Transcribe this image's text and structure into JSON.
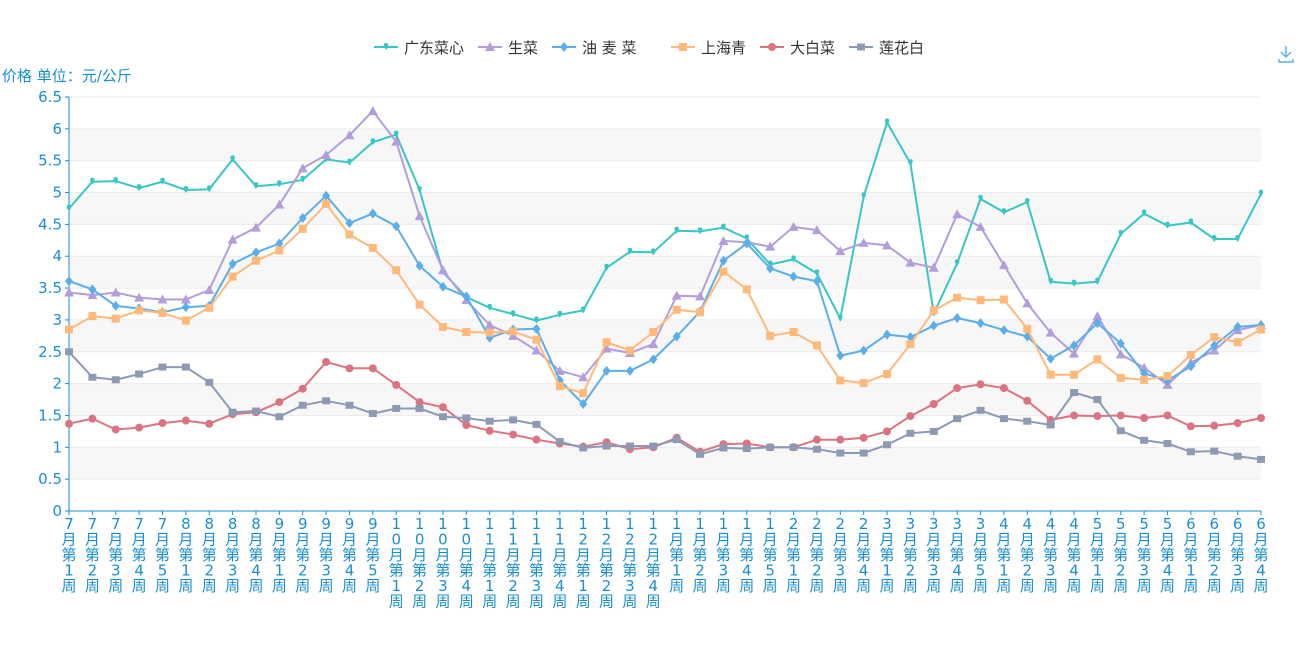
{
  "chart_data": {
    "type": "line",
    "title": "",
    "xlabel": "",
    "ylabel": "价格 单位：元/公斤",
    "ylim": [
      0,
      6.5
    ],
    "yticks": [
      0,
      0.5,
      1,
      1.5,
      2,
      2.5,
      3,
      3.5,
      4,
      4.5,
      5,
      5.5,
      6,
      6.5
    ],
    "ytick_labels": [
      "0",
      "0.5",
      "1",
      "1.5",
      "2",
      "2.5",
      "3",
      "3.5",
      "4",
      "4.5",
      "5",
      "5.5",
      "6",
      "6.5"
    ],
    "grid": "horizontal bands",
    "legend_position": "top-center",
    "categories": [
      "7月第1周",
      "7月第2周",
      "7月第3周",
      "7月第4周",
      "7月第5周",
      "8月第1周",
      "8月第2周",
      "8月第3周",
      "8月第4周",
      "9月第1周",
      "9月第2周",
      "9月第3周",
      "9月第4周",
      "9月第5周",
      "10月第1周",
      "10月第2周",
      "10月第3周",
      "10月第4周",
      "11月第1周",
      "11月第2周",
      "11月第3周",
      "11月第4周",
      "12月第1周",
      "12月第2周",
      "12月第3周",
      "12月第4周",
      "1月第1周",
      "1月第2周",
      "1月第3周",
      "1月第4周",
      "1月第5周",
      "2月第1周",
      "2月第2周",
      "2月第3周",
      "2月第4周",
      "3月第1周",
      "3月第2周",
      "3月第3周",
      "3月第4周",
      "3月第5周",
      "4月第1周",
      "4月第2周",
      "4月第3周",
      "4月第4周",
      "5月第1周",
      "5月第2周",
      "5月第3周",
      "5月第4周",
      "6月第1周",
      "6月第2周",
      "6月第3周",
      "6月第4周"
    ],
    "series": [
      {
        "name": "广东菜心",
        "color": "#38c6c6",
        "symbol": "pin",
        "values": [
          4.75,
          5.17,
          5.18,
          5.07,
          5.17,
          5.04,
          5.05,
          5.52,
          5.1,
          5.13,
          5.2,
          5.52,
          5.47,
          5.79,
          5.91,
          5.04,
          3.75,
          3.36,
          3.19,
          3.09,
          2.99,
          3.08,
          3.15,
          3.82,
          4.07,
          4.06,
          4.4,
          4.39,
          4.45,
          4.28,
          3.87,
          3.95,
          3.73,
          3.02,
          4.94,
          6.1,
          5.46,
          3.1,
          3.89,
          4.9,
          4.69,
          4.85,
          3.6,
          3.57,
          3.6,
          4.35,
          4.67,
          4.48,
          4.53,
          4.27,
          4.27,
          4.98
        ]
      },
      {
        "name": "生菜",
        "color": "#b39ddb",
        "symbol": "triangle",
        "values": [
          3.43,
          3.39,
          3.43,
          3.35,
          3.32,
          3.32,
          3.47,
          4.26,
          4.45,
          4.81,
          5.38,
          5.59,
          5.9,
          6.28,
          5.8,
          4.63,
          3.78,
          3.31,
          2.92,
          2.75,
          2.52,
          2.2,
          2.1,
          2.55,
          2.48,
          2.62,
          3.38,
          3.37,
          4.24,
          4.22,
          4.15,
          4.46,
          4.41,
          4.08,
          4.21,
          4.17,
          3.9,
          3.82,
          4.66,
          4.46,
          3.86,
          3.26,
          2.8,
          2.47,
          3.06,
          2.46,
          2.25,
          1.98,
          2.33,
          2.52,
          2.84,
          2.92
        ]
      },
      {
        "name": "油 麦 菜",
        "color": "#5aaeea",
        "symbol": "diamond",
        "values": [
          3.61,
          3.48,
          3.22,
          3.18,
          3.12,
          3.2,
          3.22,
          3.88,
          4.06,
          4.2,
          4.6,
          4.95,
          4.52,
          4.67,
          4.47,
          3.85,
          3.52,
          3.37,
          2.72,
          2.85,
          2.86,
          2.05,
          1.68,
          2.2,
          2.2,
          2.38,
          2.74,
          3.13,
          3.93,
          4.2,
          3.81,
          3.68,
          3.61,
          2.44,
          2.52,
          2.77,
          2.73,
          2.91,
          3.03,
          2.95,
          2.84,
          2.74,
          2.39,
          2.6,
          2.95,
          2.63,
          2.16,
          2.05,
          2.27,
          2.6,
          2.89,
          2.92
        ]
      },
      {
        "name": "上海青",
        "color": "#ffb97a",
        "symbol": "square",
        "values": [
          2.85,
          3.06,
          3.02,
          3.15,
          3.11,
          2.99,
          3.19,
          3.68,
          3.93,
          4.09,
          4.43,
          4.82,
          4.34,
          4.13,
          3.78,
          3.24,
          2.89,
          2.81,
          2.8,
          2.82,
          2.69,
          1.96,
          1.85,
          2.65,
          2.52,
          2.81,
          3.16,
          3.12,
          3.76,
          3.48,
          2.75,
          2.81,
          2.6,
          2.05,
          2.01,
          2.15,
          2.62,
          3.15,
          3.35,
          3.31,
          3.32,
          2.86,
          2.14,
          2.14,
          2.38,
          2.09,
          2.06,
          2.12,
          2.45,
          2.73,
          2.65,
          2.85
        ]
      },
      {
        "name": "大白菜",
        "color": "#dc7382",
        "symbol": "circle",
        "values": [
          1.37,
          1.45,
          1.28,
          1.31,
          1.38,
          1.42,
          1.37,
          1.52,
          1.55,
          1.71,
          1.92,
          2.34,
          2.24,
          2.24,
          1.98,
          1.71,
          1.63,
          1.35,
          1.26,
          1.2,
          1.12,
          1.06,
          1.01,
          1.08,
          0.97,
          1.0,
          1.15,
          0.93,
          1.05,
          1.06,
          1.0,
          1.0,
          1.12,
          1.12,
          1.15,
          1.25,
          1.49,
          1.68,
          1.93,
          1.99,
          1.93,
          1.73,
          1.43,
          1.5,
          1.49,
          1.5,
          1.46,
          1.5,
          1.33,
          1.34,
          1.38,
          1.46
        ]
      },
      {
        "name": "莲花白",
        "color": "#8e9ab4",
        "symbol": "rect",
        "values": [
          2.5,
          2.1,
          2.06,
          2.15,
          2.26,
          2.26,
          2.02,
          1.55,
          1.57,
          1.48,
          1.66,
          1.73,
          1.66,
          1.53,
          1.61,
          1.61,
          1.48,
          1.46,
          1.41,
          1.43,
          1.36,
          1.09,
          0.99,
          1.02,
          1.02,
          1.02,
          1.12,
          0.89,
          0.99,
          0.98,
          1.0,
          1.0,
          0.97,
          0.91,
          0.91,
          1.04,
          1.22,
          1.25,
          1.45,
          1.58,
          1.45,
          1.41,
          1.35,
          1.86,
          1.75,
          1.26,
          1.11,
          1.06,
          0.93,
          0.94,
          0.86,
          0.81
        ]
      }
    ]
  },
  "ui": {
    "download_icon": "download-icon"
  }
}
